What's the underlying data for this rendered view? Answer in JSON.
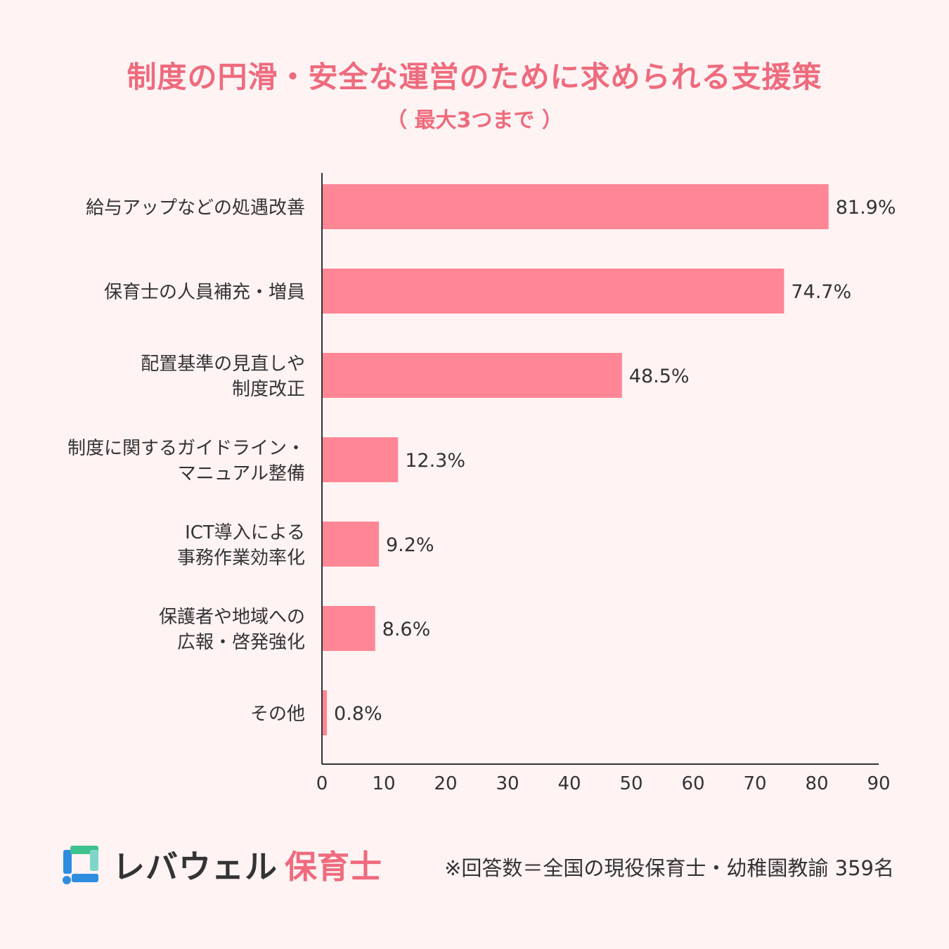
{
  "title": "制度の円滑・安全な運営のために求められる支援策",
  "subtitle": "（ 最大3つまで ）",
  "colors": {
    "accent": "#ee6b7d",
    "bar": "#ff8795",
    "text": "#333333",
    "background": "#fff3f4",
    "logo_blue": "#2f8ddf",
    "logo_green": "#3ec28f",
    "logo_light": "#7fd6c8"
  },
  "chart_data": {
    "type": "bar",
    "orientation": "horizontal",
    "categories": [
      [
        "給与アップなどの処遇改善"
      ],
      [
        "保育士の人員補充・増員"
      ],
      [
        "配置基準の見直しや",
        "制度改正"
      ],
      [
        "制度に関するガイドライン・",
        "マニュアル整備"
      ],
      [
        "ICT導入による",
        "事務作業効率化"
      ],
      [
        "保護者や地域への",
        "広報・啓発強化"
      ],
      [
        "その他"
      ]
    ],
    "values": [
      81.9,
      74.7,
      48.5,
      12.3,
      9.2,
      8.6,
      0.8
    ],
    "value_labels": [
      "81.9%",
      "74.7%",
      "48.5%",
      "12.3%",
      "9.2%",
      "8.6%",
      "0.8%"
    ],
    "xlim": [
      0,
      90
    ],
    "xticks": [
      "0",
      "10",
      "20",
      "30",
      "40",
      "50",
      "60",
      "70",
      "80",
      "90"
    ],
    "xlabel": "",
    "ylabel": "",
    "grid": false,
    "legend": "none"
  },
  "footer": {
    "brand_main": "レバウェル",
    "brand_sub": "保育士",
    "note": "※回答数＝全国の現役保育士・幼稚園教諭 359名"
  }
}
